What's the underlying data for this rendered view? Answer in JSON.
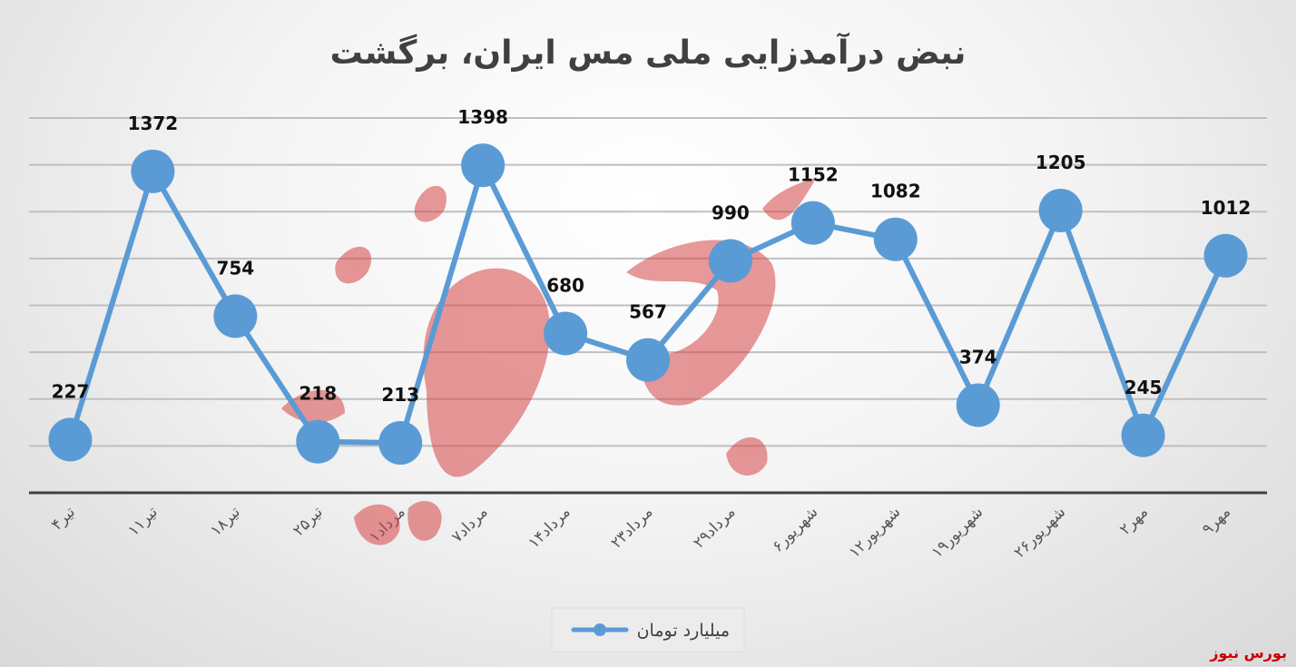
{
  "chart_data": {
    "type": "line",
    "title": "نبض درآمدزایی ملی مس ایران، برگشت",
    "categories": [
      "۴تیر",
      "۱۱تیر",
      "۱۸تیر",
      "۲۵تیر",
      "۱مرداد",
      "۷مرداد",
      "۱۴مرداد",
      "۲۳مرداد",
      "۲۹مرداد",
      "۶شهریور",
      "۱۲شهریور",
      "۱۹شهریور",
      "۲۶شهریور",
      "۲مهر",
      "۹مهر"
    ],
    "series": [
      {
        "name": "میلیارد تومان",
        "values": [
          227,
          1372,
          754,
          218,
          213,
          1398,
          680,
          567,
          990,
          1152,
          1082,
          374,
          1205,
          245,
          1012
        ],
        "color": "#5b9bd5"
      }
    ],
    "ylim": [
      0,
      1600
    ],
    "grid": true,
    "legend": "bottom"
  },
  "watermark": {
    "text": "بورس نیوز",
    "color": "#cc0000"
  }
}
